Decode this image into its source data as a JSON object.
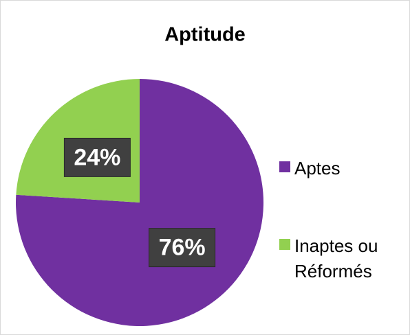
{
  "chart_data": {
    "type": "pie",
    "title": "Aptitude",
    "categories": [
      "Aptes",
      "Inaptes ou Réformés"
    ],
    "values": [
      76,
      24
    ],
    "value_labels": [
      "76%",
      "24%"
    ],
    "colors": [
      "#7030a0",
      "#92d050"
    ]
  }
}
